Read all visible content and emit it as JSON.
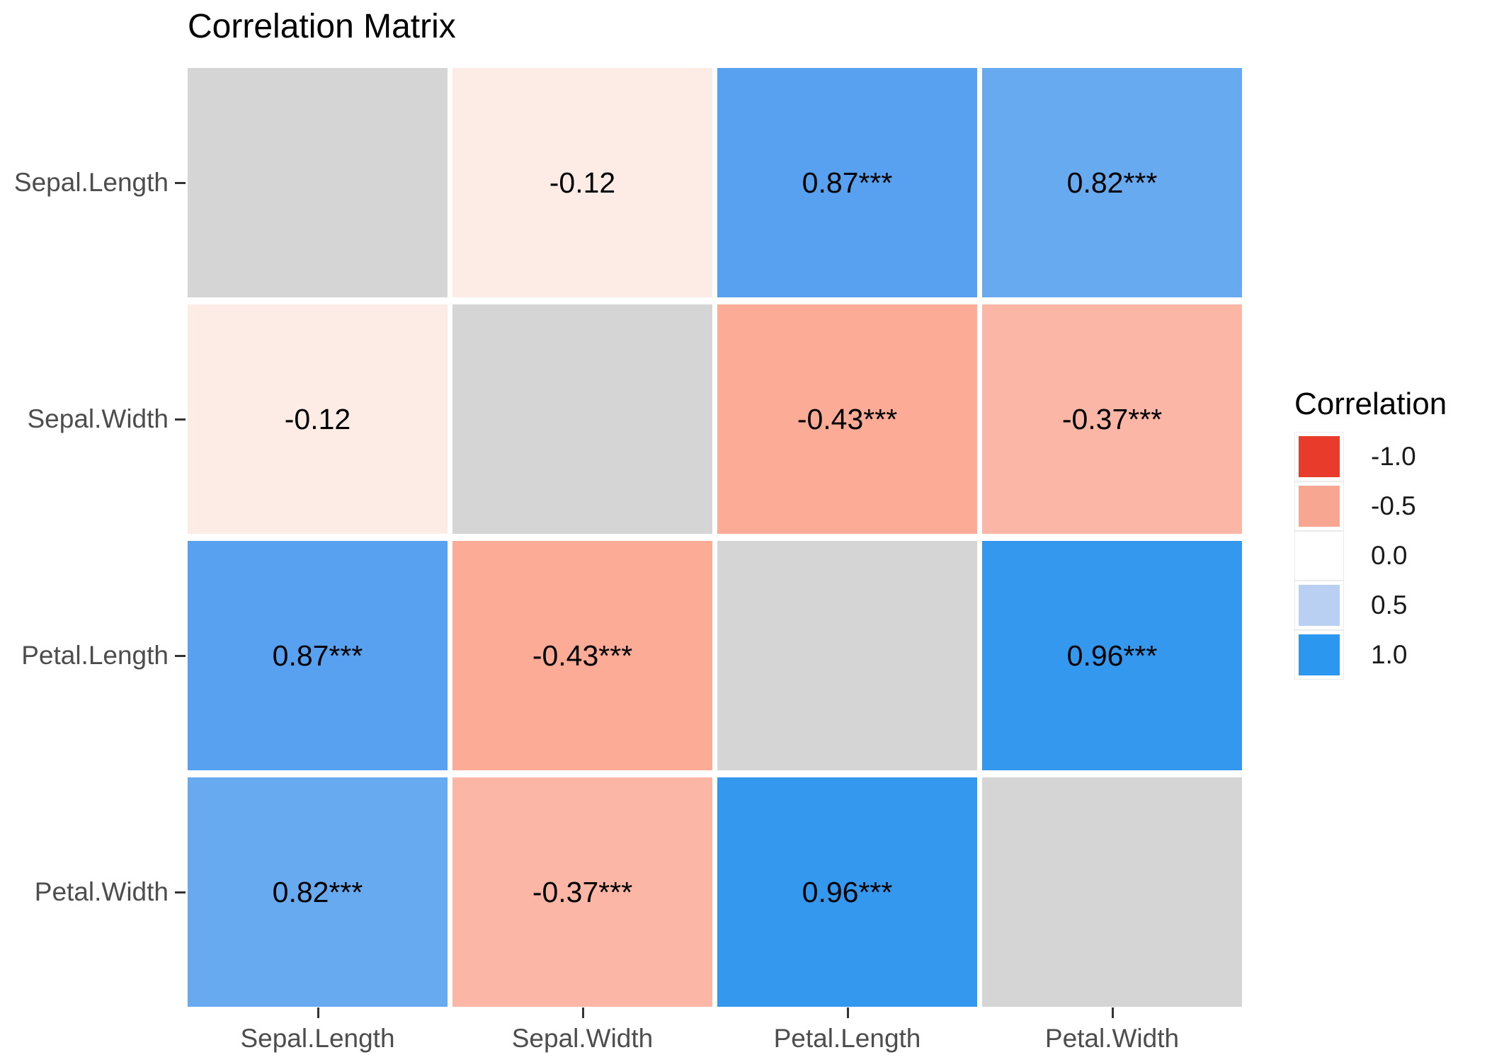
{
  "chart_data": {
    "type": "heatmap",
    "title": "Correlation Matrix",
    "x_categories": [
      "Sepal.Length",
      "Sepal.Width",
      "Petal.Length",
      "Petal.Width"
    ],
    "y_categories": [
      "Sepal.Length",
      "Sepal.Width",
      "Petal.Length",
      "Petal.Width"
    ],
    "value_range": [
      -1.0,
      1.0
    ],
    "diagonal_color": "#d5d5d5",
    "matrix": [
      {
        "y": "Sepal.Length",
        "cells": [
          {
            "x": "Sepal.Length",
            "value": null,
            "label": "",
            "color": "#d5d5d5"
          },
          {
            "x": "Sepal.Width",
            "value": -0.12,
            "label": "-0.12",
            "color": "#fdece6"
          },
          {
            "x": "Petal.Length",
            "value": 0.87,
            "label": "0.87***",
            "color": "#58a1f0"
          },
          {
            "x": "Petal.Width",
            "value": 0.82,
            "label": "0.82***",
            "color": "#68aaf0"
          }
        ]
      },
      {
        "y": "Sepal.Width",
        "cells": [
          {
            "x": "Sepal.Length",
            "value": -0.12,
            "label": "-0.12",
            "color": "#fdece6"
          },
          {
            "x": "Sepal.Width",
            "value": null,
            "label": "",
            "color": "#d5d5d5"
          },
          {
            "x": "Petal.Length",
            "value": -0.43,
            "label": "-0.43***",
            "color": "#fbab96"
          },
          {
            "x": "Petal.Width",
            "value": -0.37,
            "label": "-0.37***",
            "color": "#fcb6a5"
          }
        ]
      },
      {
        "y": "Petal.Length",
        "cells": [
          {
            "x": "Sepal.Length",
            "value": 0.87,
            "label": "0.87***",
            "color": "#58a1f0"
          },
          {
            "x": "Sepal.Width",
            "value": -0.43,
            "label": "-0.43***",
            "color": "#fbab96"
          },
          {
            "x": "Petal.Length",
            "value": null,
            "label": "",
            "color": "#d5d5d5"
          },
          {
            "x": "Petal.Width",
            "value": 0.96,
            "label": "0.96***",
            "color": "#3498ee"
          }
        ]
      },
      {
        "y": "Petal.Width",
        "cells": [
          {
            "x": "Sepal.Length",
            "value": 0.82,
            "label": "0.82***",
            "color": "#68aaf0"
          },
          {
            "x": "Sepal.Width",
            "value": -0.37,
            "label": "-0.37***",
            "color": "#fcb6a5"
          },
          {
            "x": "Petal.Length",
            "value": 0.96,
            "label": "0.96***",
            "color": "#3498ee"
          },
          {
            "x": "Petal.Width",
            "value": null,
            "label": "",
            "color": "#d5d5d5"
          }
        ]
      }
    ],
    "legend": {
      "title": "Correlation",
      "position": "right",
      "entries": [
        {
          "label": "-1.0",
          "color": "#e83b2c"
        },
        {
          "label": "-0.5",
          "color": "#f7a692"
        },
        {
          "label": "0.0",
          "color": "#ffffff"
        },
        {
          "label": "0.5",
          "color": "#b9d0f2"
        },
        {
          "label": "1.0",
          "color": "#2b97ee"
        }
      ]
    },
    "layout": {
      "grid_lines": "none",
      "panel_border": "none",
      "axis_text_color": "#4d4d4d",
      "tick_color": "#333333"
    }
  }
}
